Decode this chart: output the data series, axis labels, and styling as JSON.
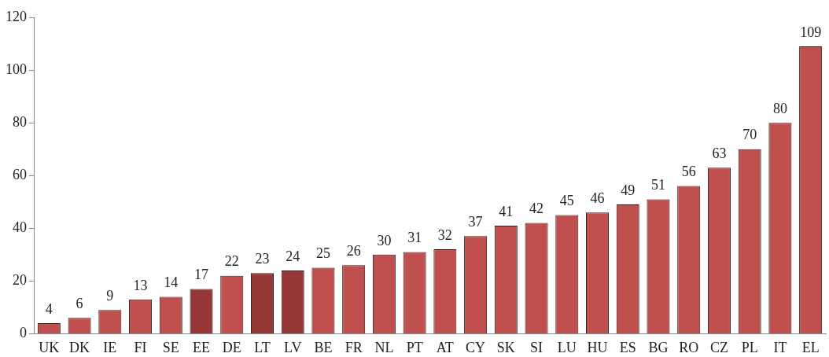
{
  "chart_data": {
    "type": "bar",
    "categories": [
      "UK",
      "DK",
      "IE",
      "FI",
      "SE",
      "EE",
      "DE",
      "LT",
      "LV",
      "BE",
      "FR",
      "NL",
      "PT",
      "AT",
      "CY",
      "SK",
      "SI",
      "LU",
      "HU",
      "ES",
      "BG",
      "RO",
      "CZ",
      "PL",
      "IT",
      "EL"
    ],
    "values": [
      4,
      6,
      9,
      13,
      14,
      17,
      22,
      23,
      24,
      25,
      26,
      30,
      31,
      32,
      37,
      41,
      42,
      45,
      46,
      49,
      51,
      56,
      63,
      70,
      80,
      109
    ],
    "colors": [
      "#c0504d",
      "#c0504d",
      "#c0504d",
      "#c0504d",
      "#c0504d",
      "#953735",
      "#c0504d",
      "#953735",
      "#953735",
      "#c0504d",
      "#c0504d",
      "#c0504d",
      "#c0504d",
      "#c0504d",
      "#c0504d",
      "#c0504d",
      "#c0504d",
      "#c0504d",
      "#c0504d",
      "#c0504d",
      "#c0504d",
      "#c0504d",
      "#c0504d",
      "#c0504d",
      "#c0504d",
      "#c0504d"
    ],
    "ylim": [
      0,
      120
    ],
    "yticks": [
      0,
      20,
      40,
      60,
      80,
      100,
      120
    ],
    "data_labels": true,
    "grid": false,
    "legend": false
  }
}
